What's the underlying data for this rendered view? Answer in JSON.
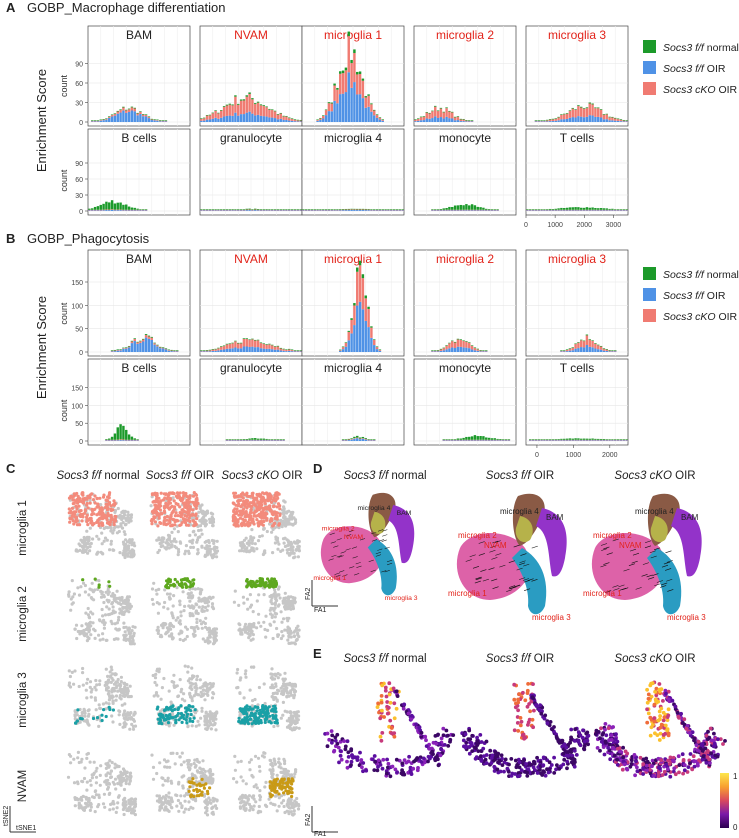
{
  "panels": {
    "A": {
      "letter": "A",
      "title": "GOBP_Macrophage differentiation"
    },
    "B": {
      "letter": "B",
      "title": "GOBP_Phagocytosis"
    },
    "C": {
      "letter": "C"
    },
    "D": {
      "letter": "D"
    },
    "E": {
      "letter": "E"
    }
  },
  "colors": {
    "normal": "#1c9a2a",
    "oir": "#4f92e6",
    "cko": "#f07b72",
    "red_label": "#e2231a",
    "cell_red": "#f38b7c",
    "cell_green": "#5ea81f",
    "cell_teal": "#1aa0a6",
    "cell_gold": "#c99a16",
    "grey": "#c6c6c6"
  },
  "legend": [
    {
      "italic": "Socs3 f/f",
      "rest": " normal",
      "key": "normal"
    },
    {
      "italic": "Socs3 f/f",
      "rest": " OIR",
      "key": "oir"
    },
    {
      "italic": "Socs3 cKO",
      "rest": " OIR",
      "key": "cko"
    }
  ],
  "chart_data": [
    {
      "type": "bar",
      "title": "GOBP_Macrophage differentiation",
      "ylabel": "Enrichment Score",
      "count_label": "count",
      "facets_row1": [
        {
          "name": "BAM",
          "red": false,
          "center": 0.4,
          "peak": 22,
          "mix": [
            0.05,
            0.75,
            0.2
          ],
          "spread": 0.13
        },
        {
          "name": "NVAM",
          "red": true,
          "center": 0.45,
          "peak": 38,
          "mix": [
            0.05,
            0.35,
            0.6
          ],
          "spread": 0.22
        },
        {
          "name": "microglia 1",
          "red": true,
          "center": 0.47,
          "peak": 112,
          "mix": [
            0.05,
            0.55,
            0.4
          ],
          "spread": 0.12
        },
        {
          "name": "microglia 2",
          "red": true,
          "center": 0.25,
          "peak": 22,
          "mix": [
            0.05,
            0.35,
            0.6
          ],
          "spread": 0.12
        },
        {
          "name": "microglia 3",
          "red": true,
          "center": 0.58,
          "peak": 25,
          "mix": [
            0.05,
            0.35,
            0.6
          ],
          "spread": 0.17
        }
      ],
      "facets_row2": [
        {
          "name": "B cells",
          "red": false,
          "center": 0.25,
          "peak": 18,
          "mix": [
            0.85,
            0.1,
            0.05
          ],
          "spread": 0.12
        },
        {
          "name": "granulocyte",
          "red": false,
          "center": 0.5,
          "peak": 3,
          "mix": [
            0.45,
            0.45,
            0.1
          ],
          "spread": 0.25
        },
        {
          "name": "microglia 4",
          "red": false,
          "center": 0.5,
          "peak": 3,
          "mix": [
            0.35,
            0.55,
            0.1
          ],
          "spread": 0.2
        },
        {
          "name": "monocyte",
          "red": false,
          "center": 0.5,
          "peak": 12,
          "mix": [
            0.85,
            0.1,
            0.05
          ],
          "spread": 0.12
        },
        {
          "name": "T cells",
          "red": false,
          "center": 0.55,
          "peak": 6,
          "mix": [
            0.8,
            0.15,
            0.05
          ],
          "spread": 0.2
        }
      ],
      "y_ticks": [
        0,
        30,
        60,
        90
      ],
      "ylim": [
        0,
        120
      ],
      "x_ticks": [
        "0",
        "1000",
        "2000",
        "3000"
      ],
      "xlim": [
        0,
        3500
      ]
    },
    {
      "type": "bar",
      "title": "GOBP_Phagocytosis",
      "ylabel": "Enrichment Score",
      "count_label": "count",
      "facets_row1": [
        {
          "name": "BAM",
          "red": false,
          "center": 0.55,
          "peak": 32,
          "mix": [
            0.05,
            0.8,
            0.15
          ],
          "spread": 0.12
        },
        {
          "name": "NVAM",
          "red": true,
          "center": 0.5,
          "peak": 28,
          "mix": [
            0.05,
            0.4,
            0.55
          ],
          "spread": 0.2
        },
        {
          "name": "microglia 1",
          "red": true,
          "center": 0.57,
          "peak": 165,
          "mix": [
            0.05,
            0.55,
            0.4
          ],
          "spread": 0.07
        },
        {
          "name": "microglia 2",
          "red": true,
          "center": 0.45,
          "peak": 28,
          "mix": [
            0.05,
            0.4,
            0.55
          ],
          "spread": 0.1
        },
        {
          "name": "microglia 3",
          "red": true,
          "center": 0.6,
          "peak": 32,
          "mix": [
            0.05,
            0.4,
            0.55
          ],
          "spread": 0.1
        }
      ],
      "facets_row2": [
        {
          "name": "B cells",
          "red": false,
          "center": 0.33,
          "peak": 40,
          "mix": [
            0.9,
            0.05,
            0.05
          ],
          "spread": 0.06
        },
        {
          "name": "granulocyte",
          "red": false,
          "center": 0.55,
          "peak": 5,
          "mix": [
            0.85,
            0.1,
            0.05
          ],
          "spread": 0.1
        },
        {
          "name": "microglia 4",
          "red": false,
          "center": 0.55,
          "peak": 12,
          "mix": [
            0.35,
            0.6,
            0.05
          ],
          "spread": 0.06
        },
        {
          "name": "monocyte",
          "red": false,
          "center": 0.62,
          "peak": 12,
          "mix": [
            0.9,
            0.05,
            0.05
          ],
          "spread": 0.12
        },
        {
          "name": "T cells",
          "red": false,
          "center": 0.55,
          "peak": 5,
          "mix": [
            0.85,
            0.1,
            0.05
          ],
          "spread": 0.18
        }
      ],
      "y_ticks": [
        0,
        50,
        100,
        150
      ],
      "ylim": [
        0,
        180
      ],
      "x_ticks": [
        "0",
        "1000",
        "2000"
      ],
      "xlim": [
        -300,
        2500
      ]
    }
  ],
  "tsne": {
    "columns": [
      {
        "italic": "Socs3 f/f",
        "rest": " normal"
      },
      {
        "italic": "Socs3 f/f",
        "rest": " OIR"
      },
      {
        "italic": "Socs3 cKO",
        "rest": " OIR"
      }
    ],
    "rows": [
      {
        "label": "microglia 1",
        "color_key": "cell_red"
      },
      {
        "label": "microglia 2",
        "color_key": "cell_green"
      },
      {
        "label": "microglia 3",
        "color_key": "cell_teal"
      },
      {
        "label": "NVAM",
        "color_key": "cell_gold"
      }
    ],
    "axis_x": "tSNE1",
    "axis_y": "tSNE2"
  },
  "trajectory": {
    "columns": [
      {
        "italic": "Socs3 f/f",
        "rest": " normal"
      },
      {
        "italic": "Socs3 f/f",
        "rest": " OIR"
      },
      {
        "italic": "Socs3 cKO",
        "rest": " OIR"
      }
    ],
    "labels": [
      "microglia 4",
      "microglia 2",
      "NVAM",
      "BAM",
      "microglia 1",
      "microglia 3"
    ],
    "axis_x": "FA1",
    "axis_y": "FA2"
  },
  "pseudotime": {
    "columns": [
      {
        "italic": "Socs3 f/f",
        "rest": " normal"
      },
      {
        "italic": "Socs3 f/f",
        "rest": " OIR"
      },
      {
        "italic": "Socs3 cKO",
        "rest": " OIR"
      }
    ],
    "scale_max": "1",
    "scale_min": "0",
    "axis_x": "FA1",
    "axis_y": "FA2"
  }
}
